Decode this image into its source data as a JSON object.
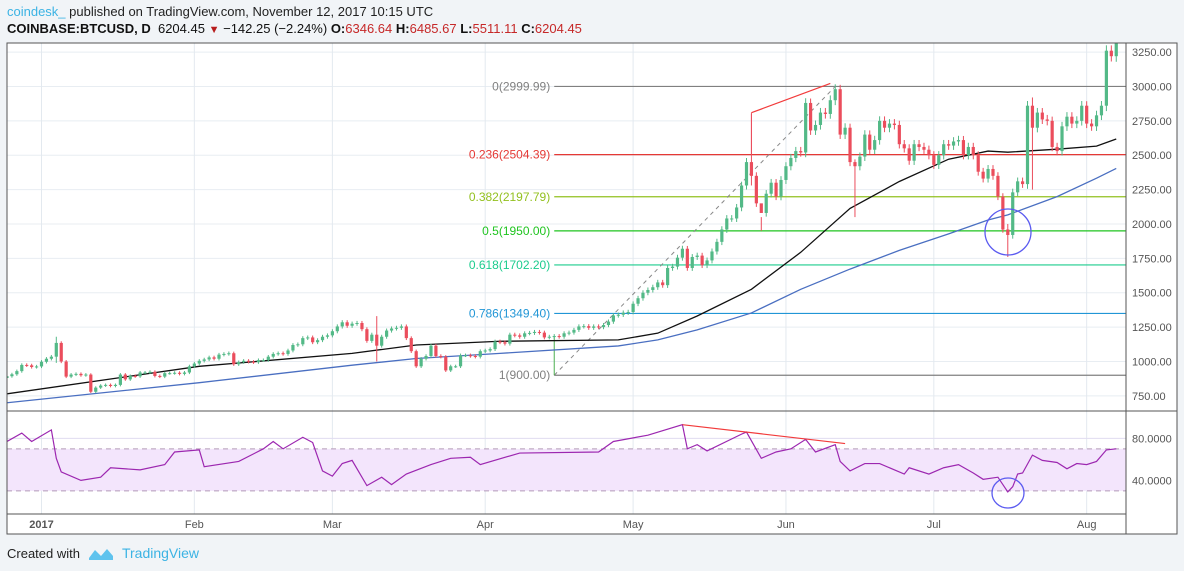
{
  "header": {
    "publisher": "coindesk_",
    "published_text": "published on TradingView.com, November 12, 2017 10:15 UTC",
    "symbol": "COINBASE:BTCUSD, D",
    "last": "6204.45",
    "change": "−142.25 (−2.24%)",
    "o_label": "O:",
    "o": "6346.64",
    "h_label": "H:",
    "h": "6485.67",
    "l_label": "L:",
    "l": "5511.11",
    "c_label": "C:",
    "c": "6204.45"
  },
  "footer": {
    "created_with": "Created with",
    "brand": "TradingView"
  },
  "colors": {
    "up": "#53b987",
    "down": "#eb4d5c",
    "ma_fast": "#111111",
    "ma_slow": "#4a6fc1",
    "rsi": "#9c27b0",
    "rsi_band": "#f3e5fc",
    "trend": "#f23b3b",
    "circle": "#5b5bf0"
  },
  "chart_data": {
    "type": "candlestick",
    "title": "COINBASE:BTCUSD, D",
    "start_date": "2016-12-25",
    "price_axis": {
      "ylim": [
        640,
        3316
      ],
      "ticks": [
        "3250.00",
        "3000.00",
        "2750.00",
        "2500.00",
        "2250.00",
        "2000.00",
        "1750.00",
        "1500.00",
        "1250.00",
        "1000.00",
        "750.00"
      ],
      "tick_values": [
        3250,
        3000,
        2750,
        2500,
        2250,
        2000,
        1750,
        1500,
        1250,
        1000,
        750
      ]
    },
    "time_axis": {
      "labels": [
        "2017",
        "Feb",
        "Mar",
        "Apr",
        "May",
        "Jun",
        "Jul",
        "Aug"
      ],
      "label_day_index": [
        7,
        38,
        66,
        97,
        127,
        158,
        188,
        219
      ]
    },
    "closes": [
      893,
      907,
      930,
      975,
      972,
      960,
      964,
      998,
      1020,
      1035,
      1135,
      1000,
      890,
      905,
      910,
      900,
      905,
      780,
      810,
      825,
      830,
      822,
      830,
      905,
      870,
      895,
      892,
      920,
      920,
      925,
      895,
      890,
      915,
      915,
      918,
      910,
      920,
      965,
      985,
      1005,
      1015,
      1030,
      1020,
      1050,
      1055,
      1060,
      980,
      995,
      1005,
      998,
      995,
      1010,
      1010,
      1035,
      1055,
      1060,
      1055,
      1080,
      1120,
      1125,
      1170,
      1175,
      1140,
      1155,
      1180,
      1190,
      1220,
      1255,
      1285,
      1260,
      1275,
      1280,
      1235,
      1150,
      1195,
      1115,
      1180,
      1225,
      1240,
      1245,
      1255,
      1170,
      1075,
      965,
      1020,
      1040,
      1115,
      1040,
      1035,
      935,
      965,
      965,
      1045,
      1045,
      1040,
      1035,
      1075,
      1080,
      1090,
      1145,
      1140,
      1130,
      1195,
      1190,
      1180,
      1205,
      1208,
      1215,
      1210,
      1175,
      1180,
      1185,
      1180,
      1205,
      1210,
      1230,
      1255,
      1257,
      1245,
      1255,
      1250,
      1265,
      1290,
      1335,
      1340,
      1355,
      1360,
      1420,
      1460,
      1500,
      1520,
      1540,
      1575,
      1555,
      1680,
      1690,
      1755,
      1820,
      1680,
      1760,
      1770,
      1700,
      1735,
      1800,
      1870,
      1960,
      2040,
      2040,
      2120,
      2280,
      2450,
      2350,
      2150,
      2080,
      2220,
      2300,
      2200,
      2320,
      2420,
      2480,
      2530,
      2520,
      2880,
      2680,
      2720,
      2810,
      2800,
      2900,
      2980,
      2650,
      2700,
      2450,
      2420,
      2490,
      2650,
      2540,
      2610,
      2750,
      2700,
      2730,
      2720,
      2580,
      2550,
      2460,
      2580,
      2560,
      2540,
      2500,
      2430,
      2500,
      2580,
      2570,
      2600,
      2610,
      2500,
      2560,
      2500,
      2380,
      2330,
      2400,
      2350,
      2200,
      1960,
      1920,
      2230,
      2310,
      2290,
      2860,
      2700,
      2810,
      2760,
      2750,
      2560,
      2530,
      2710,
      2780,
      2730,
      2750,
      2860,
      2730,
      2710,
      2790,
      2860,
      3260,
      3220,
      3390
    ],
    "first_open": 880,
    "wicks": {
      "10": [
        1180,
        990
      ],
      "75": [
        1330,
        1000
      ],
      "151": [
        2800,
        2280
      ],
      "153": [
        2050,
        1950
      ],
      "172": [
        2470,
        2050
      ],
      "203": [
        2000,
        1760
      ],
      "208": [
        2920,
        2250
      ]
    },
    "moving_averages": [
      {
        "name": "MA fast",
        "points": [
          [
            0,
            765
          ],
          [
            39,
            965
          ],
          [
            70,
            1059
          ],
          [
            83,
            1120
          ],
          [
            100,
            1147
          ],
          [
            124,
            1157
          ],
          [
            132,
            1206
          ],
          [
            140,
            1331
          ],
          [
            151,
            1525
          ],
          [
            161,
            1794
          ],
          [
            171,
            2113
          ],
          [
            181,
            2309
          ],
          [
            191,
            2471
          ],
          [
            199,
            2530
          ],
          [
            203,
            2522
          ],
          [
            213,
            2544
          ],
          [
            221,
            2566
          ],
          [
            225,
            2618
          ]
        ]
      },
      {
        "name": "MA slow",
        "points": [
          [
            0,
            700
          ],
          [
            39,
            846
          ],
          [
            70,
            973
          ],
          [
            83,
            1022
          ],
          [
            100,
            1059
          ],
          [
            124,
            1113
          ],
          [
            132,
            1157
          ],
          [
            140,
            1230
          ],
          [
            151,
            1353
          ],
          [
            161,
            1525
          ],
          [
            171,
            1672
          ],
          [
            181,
            1808
          ],
          [
            191,
            1928
          ],
          [
            199,
            2029
          ],
          [
            203,
            2066
          ],
          [
            213,
            2199
          ],
          [
            221,
            2333
          ],
          [
            225,
            2404
          ]
        ]
      }
    ],
    "fib_retracement": {
      "start_index": 111,
      "end_index": 225,
      "levels": [
        {
          "label": "0(2999.99)",
          "price": 2999.99,
          "color": "#808080"
        },
        {
          "label": "0.236(2504.39)",
          "price": 2504.39,
          "color": "#e53935"
        },
        {
          "label": "0.382(2197.79)",
          "price": 2197.79,
          "color": "#93c01f"
        },
        {
          "label": "0.5(1950.00)",
          "price": 1950.0,
          "color": "#1fc41f"
        },
        {
          "label": "0.618(1702.20)",
          "price": 1702.2,
          "color": "#1ccc8e"
        },
        {
          "label": "0.786(1349.40)",
          "price": 1349.4,
          "color": "#2196d6"
        },
        {
          "label": "1(900.00)",
          "price": 900.0,
          "color": "#808080"
        }
      ],
      "trend_line": [
        [
          111,
          900
        ],
        [
          168,
          3000
        ]
      ]
    },
    "price_trendline": [
      [
        151,
        2809
      ],
      [
        167,
        3022
      ]
    ],
    "rsi": {
      "ylim": [
        8,
        106
      ],
      "band": [
        30,
        70
      ],
      "ticks": [
        "80.0000",
        "40.0000"
      ],
      "tick_values": [
        80,
        40
      ],
      "points": [
        [
          0,
          77
        ],
        [
          3,
          85
        ],
        [
          5,
          77
        ],
        [
          9,
          88
        ],
        [
          10,
          61
        ],
        [
          11,
          48
        ],
        [
          15,
          40
        ],
        [
          19,
          43
        ],
        [
          21,
          52
        ],
        [
          27,
          50
        ],
        [
          32,
          55
        ],
        [
          34,
          67
        ],
        [
          39,
          69
        ],
        [
          40,
          53
        ],
        [
          47,
          58
        ],
        [
          52,
          70
        ],
        [
          54,
          77
        ],
        [
          56,
          70
        ],
        [
          60,
          81
        ],
        [
          62,
          76
        ],
        [
          64,
          49
        ],
        [
          66,
          44
        ],
        [
          68,
          56
        ],
        [
          70,
          59
        ],
        [
          73,
          35
        ],
        [
          76,
          43
        ],
        [
          78,
          36
        ],
        [
          81,
          46
        ],
        [
          86,
          55
        ],
        [
          90,
          61
        ],
        [
          94,
          62
        ],
        [
          96,
          55
        ],
        [
          104,
          66
        ],
        [
          120,
          67
        ],
        [
          123,
          77
        ],
        [
          130,
          83
        ],
        [
          137,
          93
        ],
        [
          138,
          70
        ],
        [
          140,
          74
        ],
        [
          142,
          68
        ],
        [
          149,
          84
        ],
        [
          150,
          86
        ],
        [
          153,
          61
        ],
        [
          156,
          67
        ],
        [
          159,
          70
        ],
        [
          162,
          79
        ],
        [
          164,
          67
        ],
        [
          168,
          74
        ],
        [
          169,
          58
        ],
        [
          171,
          49
        ],
        [
          174,
          56
        ],
        [
          177,
          56
        ],
        [
          182,
          46
        ],
        [
          183,
          52
        ],
        [
          187,
          46
        ],
        [
          190,
          52
        ],
        [
          193,
          55
        ],
        [
          196,
          47
        ],
        [
          198,
          41
        ],
        [
          201,
          43
        ],
        [
          203,
          29
        ],
        [
          204,
          34
        ],
        [
          205,
          46
        ],
        [
          206,
          47
        ],
        [
          208,
          64
        ],
        [
          210,
          59
        ],
        [
          213,
          57
        ],
        [
          215,
          51
        ],
        [
          217,
          56
        ],
        [
          219,
          55
        ],
        [
          221,
          58
        ],
        [
          223,
          69
        ],
        [
          225,
          70
        ]
      ],
      "trendline": [
        [
          137,
          93
        ],
        [
          170,
          75
        ]
      ]
    }
  }
}
